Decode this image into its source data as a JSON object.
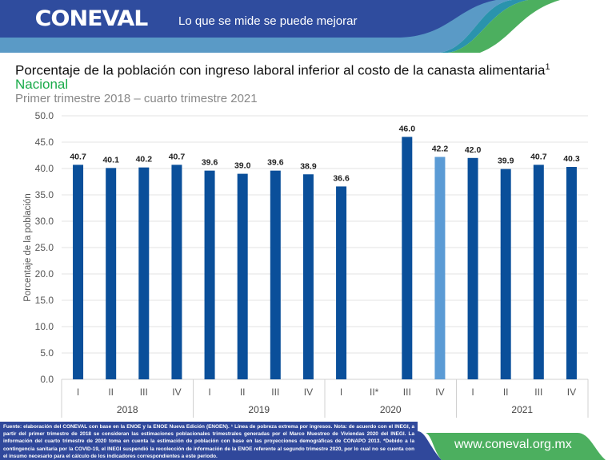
{
  "header": {
    "logo": "CONEVAL",
    "slogan": "Lo que se mide se puede mejorar"
  },
  "colors": {
    "header_blue": "#2f4c9e",
    "header_light": "#5a9ac6",
    "teal": "#2a93ad",
    "green": "#4caf5f",
    "bar": "#0a4f9a",
    "bar_highlight": "#5b9bd5"
  },
  "chart_data": {
    "type": "bar",
    "title": "Porcentaje de la población con ingreso laboral inferior al costo de la canasta alimentaria",
    "title_superscript": "1",
    "subtitle": "Nacional",
    "period": "Primer trimestre 2018 – cuarto trimestre 2021",
    "ylabel": "Porcentaje de la población",
    "ylim": [
      0,
      50
    ],
    "yticks": [
      "0.0",
      "5.0",
      "10.0",
      "15.0",
      "20.0",
      "25.0",
      "30.0",
      "35.0",
      "40.0",
      "45.0",
      "50.0"
    ],
    "grid": true,
    "groups": [
      "2018",
      "2019",
      "2020",
      "2021"
    ],
    "categories": [
      "I",
      "II",
      "III",
      "IV",
      "I",
      "II",
      "III",
      "IV",
      "I",
      "II*",
      "III",
      "IV",
      "I",
      "II",
      "III",
      "IV"
    ],
    "values": [
      40.7,
      40.1,
      40.2,
      40.7,
      39.6,
      39.0,
      39.6,
      38.9,
      36.6,
      null,
      46.0,
      42.2,
      42.0,
      39.9,
      40.7,
      40.3
    ],
    "labels": [
      "40.7",
      "40.1",
      "40.2",
      "40.7",
      "39.6",
      "39.0",
      "39.6",
      "38.9",
      "36.6",
      "",
      "46.0",
      "42.2",
      "42.0",
      "39.9",
      "40.7",
      "40.3"
    ],
    "highlight_index": 11
  },
  "footer": {
    "note": "Fuente: elaboración del CONEVAL con base en la ENOE y la ENOE Nueva Edición (ENOEN). ¹ Línea de pobreza extrema por ingresos. Nota: de acuerdo con el INEGI, a partir del primer trimestre de 2018 se consideran las estimaciones poblacionales trimestrales generadas por el Marco Muestreo de Viviendas 2020 del INEGI. La información del cuarto trimestre de 2020 toma en cuenta la estimación de población con base en las proyecciones demográficas de CONAPO 2013. *Debido a la contingencia sanitaria por la COVID-19, el INEGI suspendió la recolección de información de la ENOE referente al segundo trimestre 2020, por lo cual no se cuenta con el insumo necesario para el cálculo de los indicadores correspondientes a este periodo.",
    "url": "www.coneval.org.mx"
  }
}
